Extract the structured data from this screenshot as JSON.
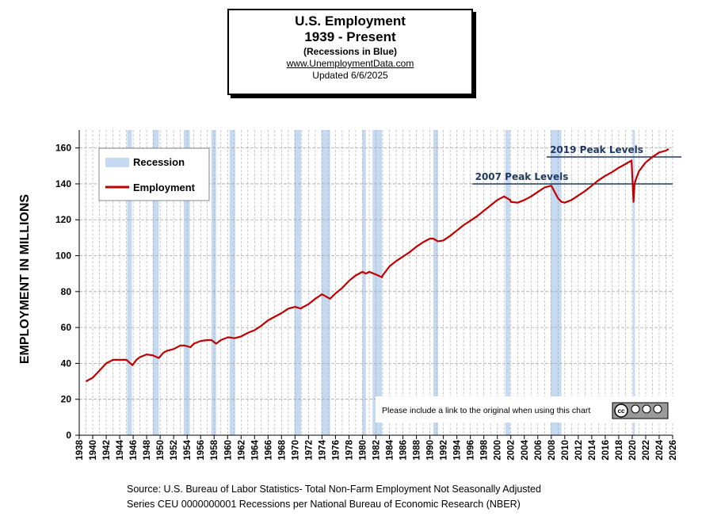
{
  "header": {
    "title_line1": "U.S. Employment",
    "title_line2": "1939 - Present",
    "subtitle": "(Recessions  in Blue)",
    "website": "www.UnemploymentData.com",
    "updated": "Updated  6/6/2025"
  },
  "footer": {
    "line1": "Source: U.S.  Bureau of Labor Statistics-  Total Non-Farm Employment Not Seasonally Adjusted",
    "line2": "Series CEU 0000000001    Recessions per National Bureau of Economic Research (NBER)"
  },
  "notice": {
    "text": "Please include a link to the original when using this chart",
    "badge": "cc BY NC ND"
  },
  "colors": {
    "employment": "#c00000",
    "recession": "#c5d9f1",
    "peak_line": "#1f3864",
    "peak_label": "#1f3864",
    "grid": "#a6a6a6"
  },
  "chart_data": {
    "type": "line",
    "ylabel": "EMPLOYMENT IN MILLIONS",
    "xlabel": "",
    "xlim": [
      1938,
      2026
    ],
    "ylim": [
      0,
      170
    ],
    "x_ticks": [
      1938,
      1940,
      1942,
      1944,
      1946,
      1948,
      1950,
      1952,
      1954,
      1956,
      1958,
      1960,
      1962,
      1964,
      1966,
      1968,
      1970,
      1972,
      1974,
      1976,
      1978,
      1980,
      1982,
      1984,
      1986,
      1988,
      1990,
      1992,
      1994,
      1996,
      1998,
      2000,
      2002,
      2004,
      2006,
      2008,
      2010,
      2012,
      2014,
      2016,
      2018,
      2020,
      2022,
      2024,
      2026
    ],
    "y_ticks": [
      0,
      20,
      40,
      60,
      80,
      100,
      120,
      140,
      160
    ],
    "legend": [
      "Recession",
      "Employment"
    ],
    "legend_position": "top-left",
    "recessions": [
      [
        1945.1,
        1945.8
      ],
      [
        1948.9,
        1949.8
      ],
      [
        1953.5,
        1954.4
      ],
      [
        1957.6,
        1958.3
      ],
      [
        1960.3,
        1961.1
      ],
      [
        1969.9,
        1970.9
      ],
      [
        1973.9,
        1975.2
      ],
      [
        1980.0,
        1980.5
      ],
      [
        1981.5,
        1982.9
      ],
      [
        1990.5,
        1991.2
      ],
      [
        2001.2,
        2001.9
      ],
      [
        2007.9,
        2009.5
      ],
      [
        2020.1,
        2020.4
      ]
    ],
    "series": [
      {
        "name": "Employment",
        "x": [
          1939,
          1940,
          1941,
          1942,
          1943,
          1944,
          1945,
          1945.9,
          1946.5,
          1947,
          1948,
          1948.9,
          1949.8,
          1950.5,
          1951,
          1952,
          1953,
          1953.6,
          1954.5,
          1955,
          1956,
          1957,
          1957.6,
          1958.3,
          1959,
          1960,
          1960.3,
          1961,
          1962,
          1963,
          1964,
          1965,
          1966,
          1967,
          1968,
          1969,
          1970,
          1970.9,
          1971,
          1972,
          1973,
          1974,
          1975.2,
          1976,
          1977,
          1978,
          1979,
          1980,
          1980.5,
          1981,
          1982,
          1982.9,
          1983,
          1984,
          1985,
          1986,
          1987,
          1988,
          1989,
          1990,
          1990.5,
          1991.2,
          1992,
          1993,
          1994,
          1995,
          1996,
          1997,
          1998,
          1999,
          2000,
          2001,
          2001.9,
          2002,
          2003,
          2004,
          2005,
          2006,
          2007,
          2008,
          2009,
          2009.5,
          2010,
          2011,
          2012,
          2013,
          2014,
          2015,
          2016,
          2017,
          2018,
          2019,
          2019.9,
          2020.2,
          2020.35,
          2020.6,
          2021,
          2022,
          2023,
          2024,
          2025,
          2025.4
        ],
        "values": [
          30,
          32,
          36,
          40,
          42,
          42,
          42,
          39,
          42,
          43.5,
          45,
          44.5,
          43,
          46,
          47,
          48,
          50,
          50,
          49,
          51,
          52.5,
          53,
          53,
          51,
          53,
          54.5,
          54.5,
          54,
          55,
          57,
          58.5,
          61,
          64,
          66,
          68,
          70.5,
          71.5,
          70.5,
          71,
          73,
          76,
          78.5,
          76,
          79,
          82,
          86,
          89,
          91,
          90,
          91,
          89.5,
          88,
          89,
          94,
          97,
          99.5,
          102,
          105,
          107.5,
          109.5,
          109.5,
          108,
          108.5,
          111,
          114,
          117,
          119.5,
          122,
          125,
          128,
          131,
          133,
          131,
          130,
          129.5,
          131,
          133,
          135.5,
          138,
          139,
          132,
          130,
          129.5,
          131,
          133.5,
          136,
          139,
          142,
          144.5,
          146.5,
          149,
          151,
          153,
          130,
          140,
          143,
          147,
          152,
          155,
          157.5,
          158.5,
          159.5
        ]
      }
    ],
    "reference_lines": [
      {
        "label": "2007 Peak Levels",
        "y": 140
      },
      {
        "label": "2019 Peak Levels",
        "y": 155
      }
    ]
  }
}
